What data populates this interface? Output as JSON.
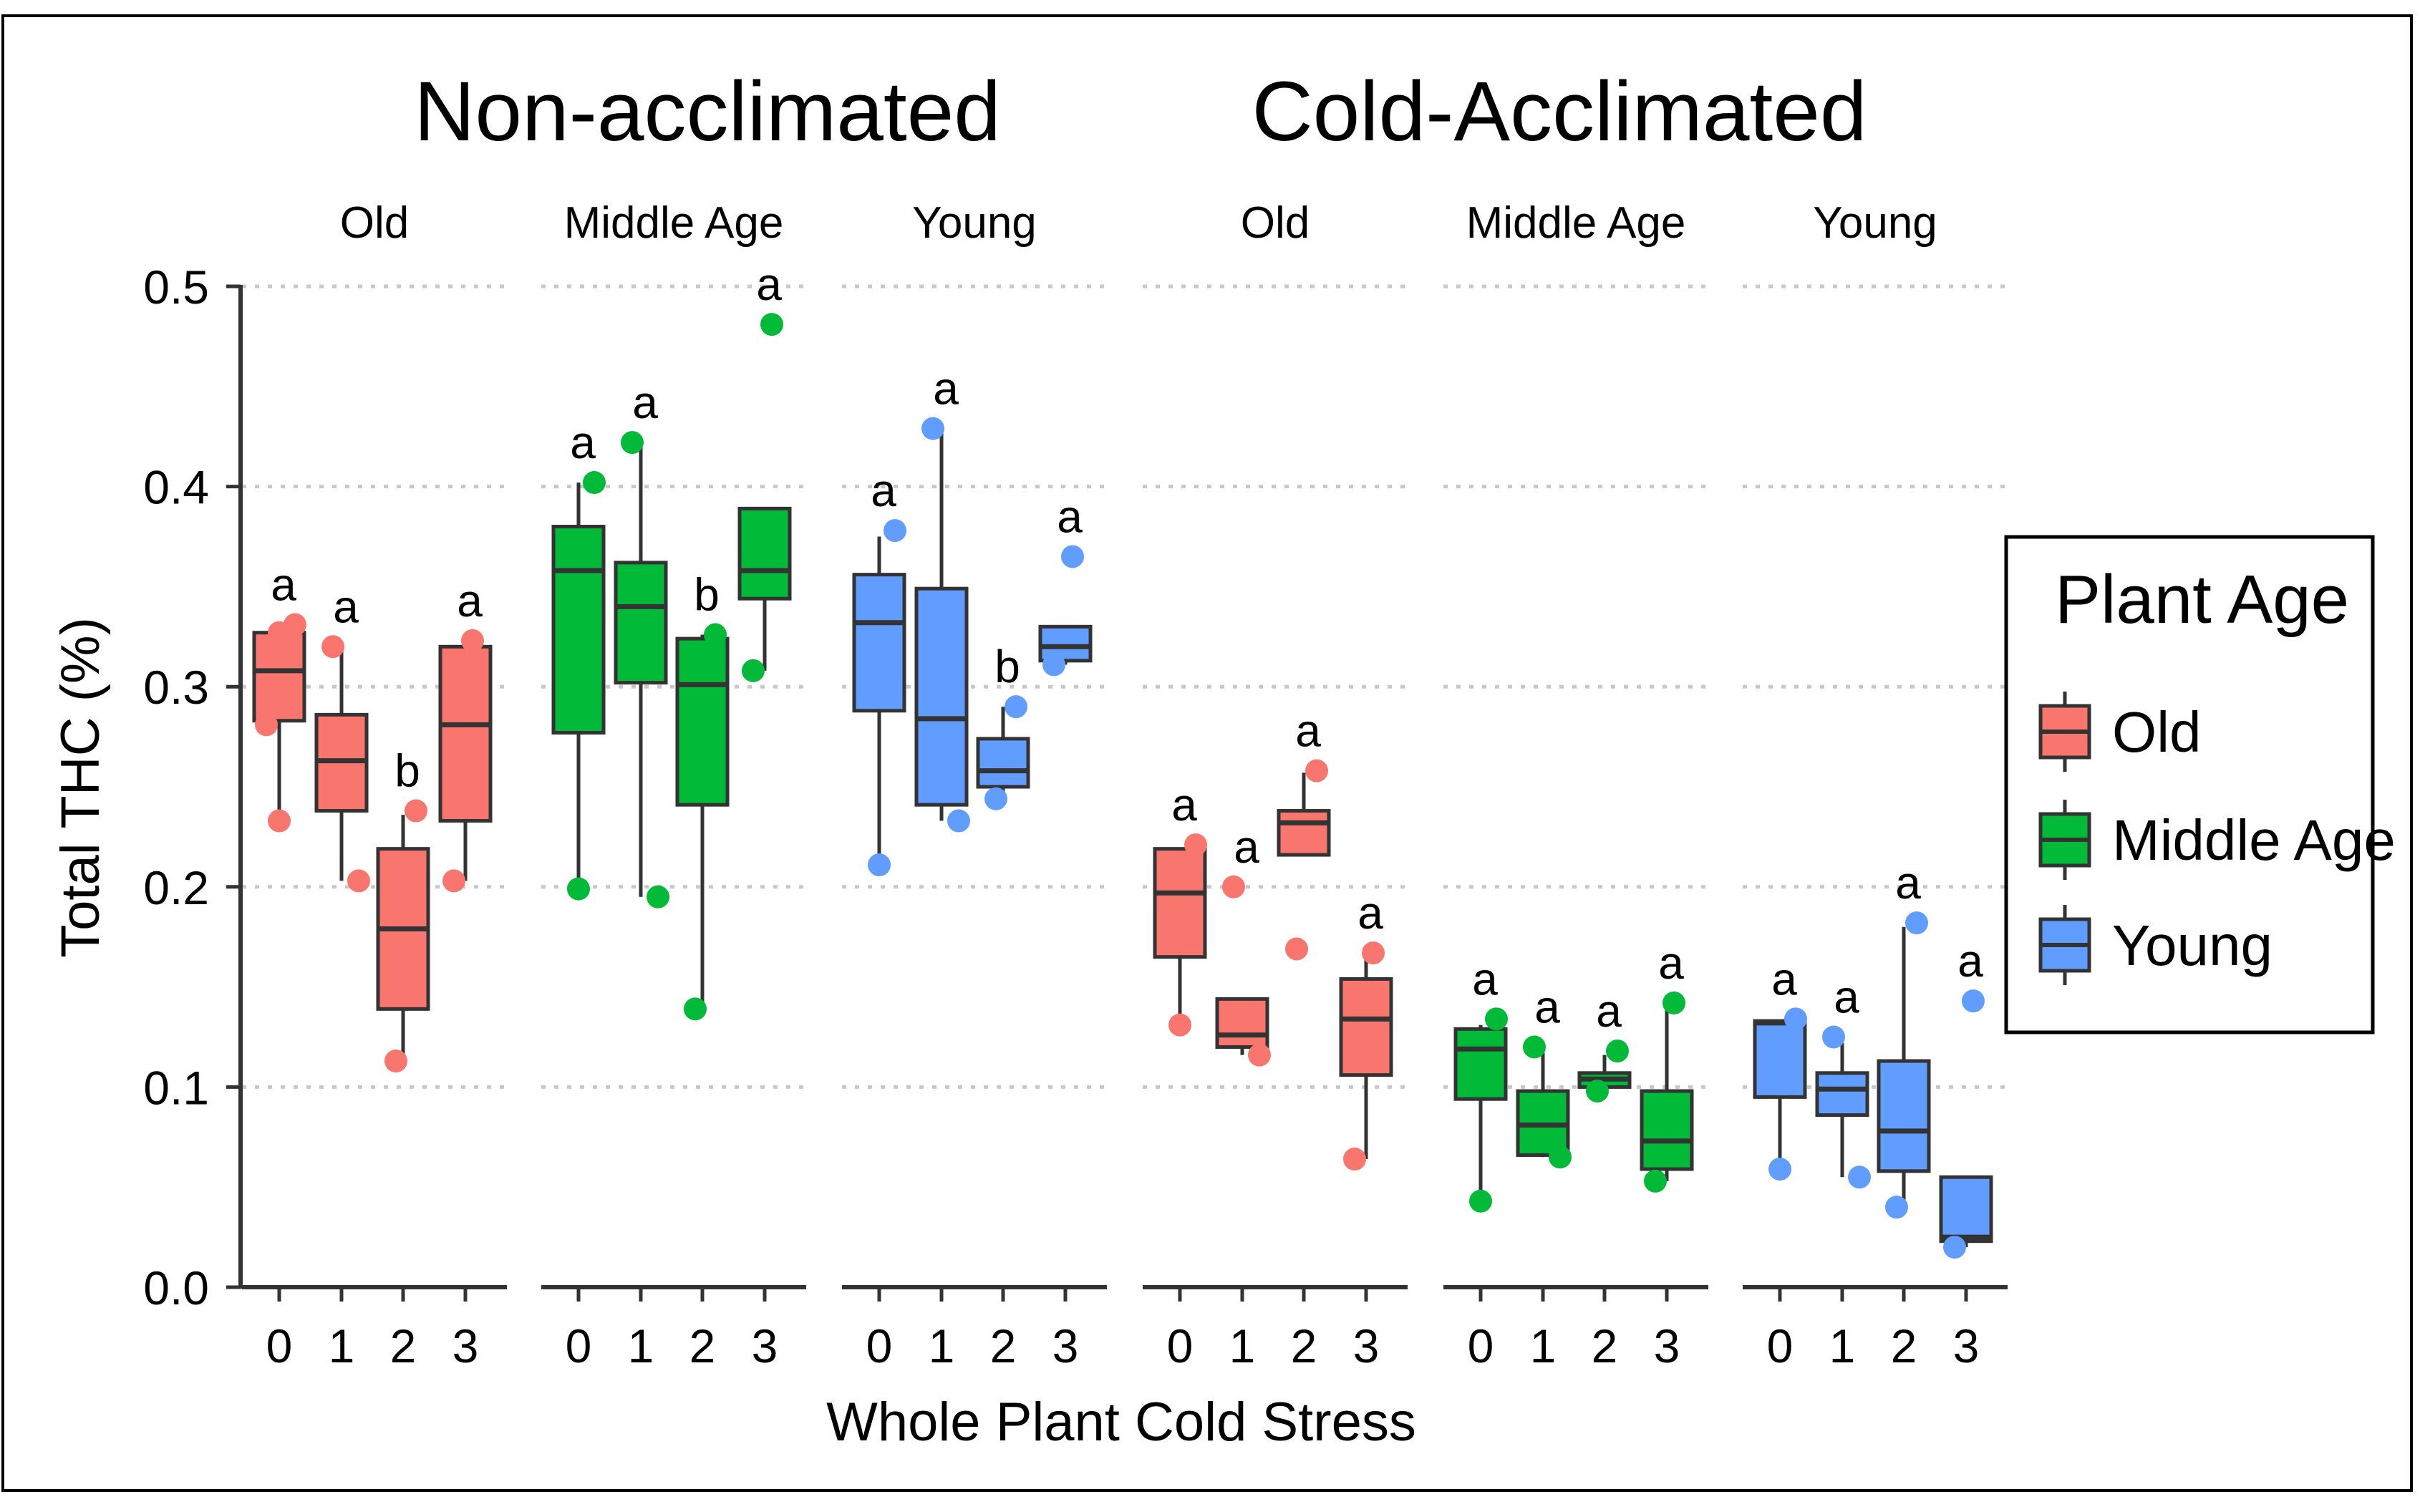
{
  "chart_data": {
    "type": "boxplot",
    "ylabel": "Total THC (%)",
    "xlabel": "Whole Plant Cold Stress",
    "ylim": [
      0.0,
      0.5
    ],
    "yticks": [
      "0.0",
      "0.1",
      "0.2",
      "0.3",
      "0.4",
      "0.5"
    ],
    "ytick_values": [
      0.0,
      0.1,
      0.2,
      0.3,
      0.4,
      0.5
    ],
    "grid": "horizontal dotted",
    "categories": [
      "0",
      "1",
      "2",
      "3"
    ],
    "groups": [
      {
        "title": "Non-acclimated",
        "panels": [
          {
            "label": "Old",
            "age": "Old",
            "boxes": [
              {
                "x": "0",
                "q1": 0.283,
                "median": 0.308,
                "q3": 0.327,
                "whisker_low": 0.233,
                "whisker_high": 0.33,
                "points": [
                  0.331,
                  0.327,
                  0.281,
                  0.233
                ],
                "letter": "a"
              },
              {
                "x": "1",
                "q1": 0.238,
                "median": 0.263,
                "q3": 0.286,
                "whisker_low": 0.203,
                "whisker_high": 0.318,
                "points": [
                  0.32,
                  0.203
                ],
                "letter": "a"
              },
              {
                "x": "2",
                "q1": 0.139,
                "median": 0.179,
                "q3": 0.219,
                "whisker_low": 0.113,
                "whisker_high": 0.236,
                "points": [
                  0.238,
                  0.113
                ],
                "letter": "b"
              },
              {
                "x": "3",
                "q1": 0.233,
                "median": 0.281,
                "q3": 0.32,
                "whisker_low": 0.203,
                "whisker_high": 0.323,
                "points": [
                  0.323,
                  0.203
                ],
                "letter": "a"
              }
            ]
          },
          {
            "label": "Middle Age",
            "age": "Middle Age",
            "boxes": [
              {
                "x": "0",
                "q1": 0.277,
                "median": 0.358,
                "q3": 0.38,
                "whisker_low": 0.199,
                "whisker_high": 0.402,
                "points": [
                  0.402,
                  0.199
                ],
                "letter": "a"
              },
              {
                "x": "1",
                "q1": 0.302,
                "median": 0.34,
                "q3": 0.362,
                "whisker_low": 0.195,
                "whisker_high": 0.422,
                "points": [
                  0.422,
                  0.195
                ],
                "letter": "a"
              },
              {
                "x": "2",
                "q1": 0.241,
                "median": 0.301,
                "q3": 0.324,
                "whisker_low": 0.139,
                "whisker_high": 0.326,
                "points": [
                  0.326,
                  0.139
                ],
                "letter": "b"
              },
              {
                "x": "3",
                "q1": 0.344,
                "median": 0.358,
                "q3": 0.389,
                "whisker_low": 0.308,
                "whisker_high": 0.389,
                "points": [
                  0.481,
                  0.308
                ],
                "letter": "a"
              }
            ]
          },
          {
            "label": "Young",
            "age": "Young",
            "boxes": [
              {
                "x": "0",
                "q1": 0.288,
                "median": 0.332,
                "q3": 0.356,
                "whisker_low": 0.211,
                "whisker_high": 0.375,
                "points": [
                  0.378,
                  0.211
                ],
                "letter": "a"
              },
              {
                "x": "1",
                "q1": 0.241,
                "median": 0.284,
                "q3": 0.349,
                "whisker_low": 0.233,
                "whisker_high": 0.429,
                "points": [
                  0.429,
                  0.233
                ],
                "letter": "a"
              },
              {
                "x": "2",
                "q1": 0.25,
                "median": 0.258,
                "q3": 0.274,
                "whisker_low": 0.244,
                "whisker_high": 0.29,
                "points": [
                  0.29,
                  0.244
                ],
                "letter": "b"
              },
              {
                "x": "3",
                "q1": 0.313,
                "median": 0.32,
                "q3": 0.33,
                "whisker_low": 0.311,
                "whisker_high": 0.33,
                "points": [
                  0.365,
                  0.311
                ],
                "letter": "a"
              }
            ]
          }
        ]
      },
      {
        "title": "Cold-Acclimated",
        "panels": [
          {
            "label": "Old",
            "age": "Old",
            "boxes": [
              {
                "x": "0",
                "q1": 0.165,
                "median": 0.197,
                "q3": 0.219,
                "whisker_low": 0.131,
                "whisker_high": 0.219,
                "points": [
                  0.221,
                  0.131
                ],
                "letter": "a"
              },
              {
                "x": "1",
                "q1": 0.12,
                "median": 0.126,
                "q3": 0.144,
                "whisker_low": 0.116,
                "whisker_high": 0.144,
                "points": [
                  0.2,
                  0.116
                ],
                "letter": "a"
              },
              {
                "x": "2",
                "q1": 0.216,
                "median": 0.232,
                "q3": 0.238,
                "whisker_low": 0.216,
                "whisker_high": 0.257,
                "points": [
                  0.258,
                  0.169
                ],
                "letter": "a"
              },
              {
                "x": "3",
                "q1": 0.106,
                "median": 0.134,
                "q3": 0.154,
                "whisker_low": 0.064,
                "whisker_high": 0.165,
                "points": [
                  0.167,
                  0.064
                ],
                "letter": "a"
              }
            ]
          },
          {
            "label": "Middle Age",
            "age": "Middle Age",
            "boxes": [
              {
                "x": "0",
                "q1": 0.094,
                "median": 0.119,
                "q3": 0.129,
                "whisker_low": 0.043,
                "whisker_high": 0.131,
                "points": [
                  0.134,
                  0.043
                ],
                "letter": "a"
              },
              {
                "x": "1",
                "q1": 0.066,
                "median": 0.081,
                "q3": 0.098,
                "whisker_low": 0.065,
                "whisker_high": 0.117,
                "points": [
                  0.12,
                  0.065
                ],
                "letter": "a"
              },
              {
                "x": "2",
                "q1": 0.1,
                "median": 0.104,
                "q3": 0.107,
                "whisker_low": 0.098,
                "whisker_high": 0.116,
                "points": [
                  0.118,
                  0.098
                ],
                "letter": "a"
              },
              {
                "x": "3",
                "q1": 0.059,
                "median": 0.073,
                "q3": 0.098,
                "whisker_low": 0.053,
                "whisker_high": 0.14,
                "points": [
                  0.142,
                  0.053
                ],
                "letter": "a"
              }
            ]
          },
          {
            "label": "Young",
            "age": "Young",
            "boxes": [
              {
                "x": "0",
                "q1": 0.095,
                "median": 0.132,
                "q3": 0.133,
                "whisker_low": 0.059,
                "whisker_high": 0.133,
                "points": [
                  0.134,
                  0.059
                ],
                "letter": "a"
              },
              {
                "x": "1",
                "q1": 0.086,
                "median": 0.099,
                "q3": 0.107,
                "whisker_low": 0.055,
                "whisker_high": 0.122,
                "points": [
                  0.125,
                  0.055
                ],
                "letter": "a"
              },
              {
                "x": "2",
                "q1": 0.058,
                "median": 0.078,
                "q3": 0.113,
                "whisker_low": 0.04,
                "whisker_high": 0.18,
                "points": [
                  0.182,
                  0.04
                ],
                "letter": "a"
              },
              {
                "x": "3",
                "q1": 0.023,
                "median": 0.025,
                "q3": 0.055,
                "whisker_low": 0.02,
                "whisker_high": 0.055,
                "points": [
                  0.143,
                  0.02
                ],
                "letter": "a"
              }
            ]
          }
        ]
      }
    ],
    "legend": {
      "title": "Plant Age",
      "position": "right",
      "entries": [
        {
          "label": "Old",
          "color": "#F8766D"
        },
        {
          "label": "Middle Age",
          "color": "#00BA38"
        },
        {
          "label": "Young",
          "color": "#619CFF"
        }
      ]
    }
  },
  "colors": {
    "Old": "#F8766D",
    "Middle Age": "#00BA38",
    "Young": "#619CFF",
    "points": {
      "Old": "#F8766D",
      "Middle Age": "#00BA38",
      "Young": "#619CFF"
    },
    "outline": "#333333",
    "grid": "#c8c8c8"
  }
}
